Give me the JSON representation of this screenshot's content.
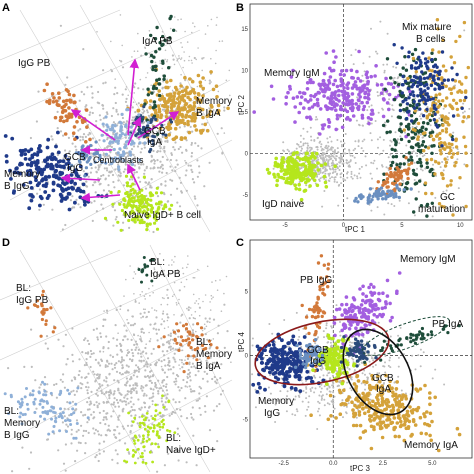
{
  "colors": {
    "background_cells": "#bdbdbd",
    "iga_pb": "#1e4d3a",
    "igg_pb": "#d2793a",
    "memory_b_iga": "#d4a23a",
    "memory_b_igg": "#1f3a8a",
    "gcb_iga": "#2b4a7a",
    "gcb_igg": "#6a8fc0",
    "centroblasts": "#8fb0d8",
    "naive_igd": "#b5e61d",
    "memory_igm": "#a35fe0",
    "arrows": "#d21fd2",
    "ellipse_red": "#8b1a1a",
    "ellipse_dark": "#111111"
  },
  "chart_data": [
    {
      "panel": "A",
      "type": "scatter",
      "labels": [
        "IgA PB",
        "IgG PB",
        "Memory B IgA",
        "GCB IgA",
        "Centroblasts",
        "GCB IgG",
        "Memory B IgG",
        "Naive IgD+ B cell"
      ]
    },
    {
      "panel": "B",
      "type": "scatter",
      "xlabel": "tPC 1",
      "ylabel": "tPC 2",
      "x_ticks": [
        -5,
        0,
        5,
        10
      ],
      "y_ticks": [
        -5,
        0,
        5,
        10,
        15
      ],
      "xlim": [
        -8,
        11
      ],
      "ylim": [
        -8,
        18
      ],
      "labels": [
        "Mix mature B cells",
        "Memory IgM",
        "IgD naive",
        "GC maturation"
      ]
    },
    {
      "panel": "C",
      "type": "scatter",
      "xlabel": "tPC 3",
      "ylabel": "tPC 4",
      "x_ticks": [
        -2.5,
        0.0,
        2.5,
        5.0
      ],
      "y_ticks": [
        -5,
        0,
        5
      ],
      "xlim": [
        -4.2,
        7
      ],
      "ylim": [
        -8,
        9
      ],
      "labels": [
        "PB IgG",
        "Memory IgM",
        "PB IgA",
        "GCB IgG",
        "GCB IgA",
        "Memory IgG",
        "Memory IgA"
      ]
    },
    {
      "panel": "D",
      "type": "scatter",
      "labels": [
        "BL: IgG PB",
        "BL: IgA PB",
        "BL: Memory B IgA",
        "BL: Memory B IgG",
        "BL: Naive IgD+"
      ]
    }
  ],
  "panels": {
    "A": {
      "letter": "A"
    },
    "B": {
      "letter": "B"
    },
    "C": {
      "letter": "C"
    },
    "D": {
      "letter": "D"
    }
  }
}
